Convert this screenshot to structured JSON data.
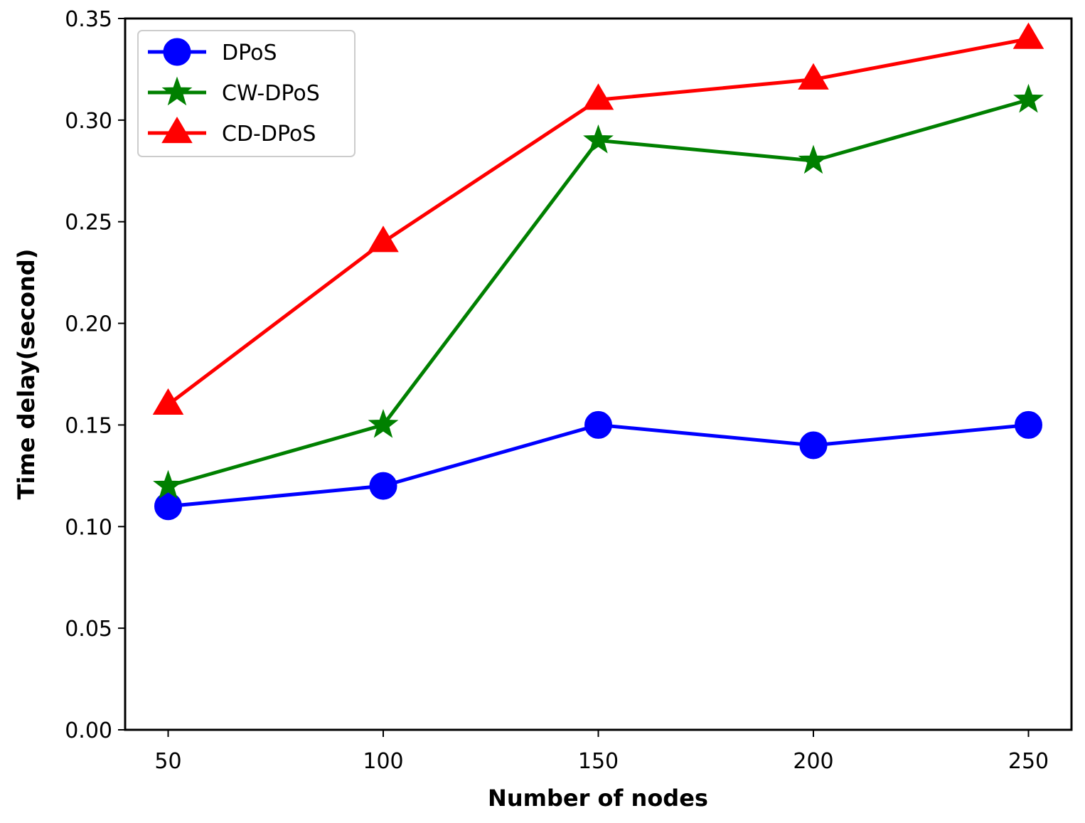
{
  "chart_data": {
    "type": "line",
    "title": "",
    "xlabel": "Number of nodes",
    "ylabel": "Time delay(second)",
    "x": [
      50,
      100,
      150,
      200,
      250
    ],
    "xlim": [
      40,
      260
    ],
    "ylim": [
      0,
      0.35
    ],
    "xticks": [
      50,
      100,
      150,
      200,
      250
    ],
    "xtick_labels": [
      "50",
      "100",
      "150",
      "200",
      "250"
    ],
    "yticks": [
      0,
      0.05,
      0.1,
      0.15,
      0.2,
      0.25,
      0.3,
      0.35
    ],
    "ytick_labels": [
      "0.00",
      "0.05",
      "0.10",
      "0.15",
      "0.20",
      "0.25",
      "0.30",
      "0.35"
    ],
    "grid": false,
    "legend_position": "top-left",
    "series": [
      {
        "name": "DPoS",
        "values": [
          0.11,
          0.12,
          0.15,
          0.14,
          0.15
        ],
        "color": "#0000ff",
        "marker": "circle"
      },
      {
        "name": "CW-DPoS",
        "values": [
          0.12,
          0.15,
          0.29,
          0.28,
          0.31
        ],
        "color": "#008000",
        "marker": "star"
      },
      {
        "name": "CD-DPoS",
        "values": [
          0.16,
          0.24,
          0.31,
          0.32,
          0.34
        ],
        "color": "#ff0000",
        "marker": "triangle"
      }
    ]
  }
}
